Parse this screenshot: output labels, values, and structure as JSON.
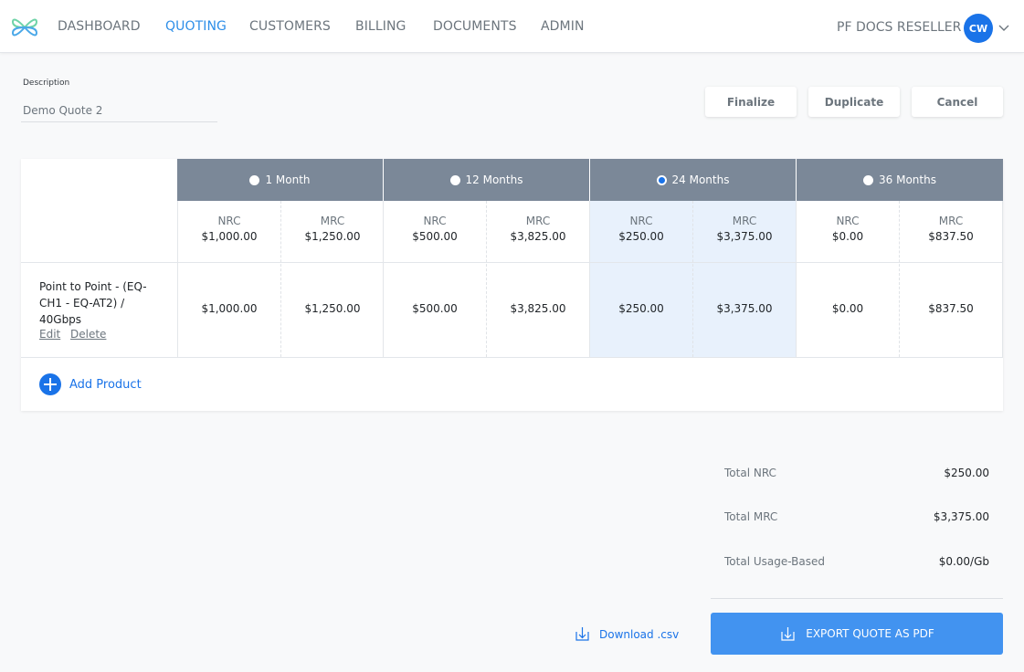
{
  "nav": {
    "items": [
      {
        "label": "DASHBOARD",
        "active": false
      },
      {
        "label": "QUOTING",
        "active": true
      },
      {
        "label": "CUSTOMERS",
        "active": false
      },
      {
        "label": "BILLING",
        "active": false
      },
      {
        "label": "DOCUMENTS",
        "active": false
      },
      {
        "label": "ADMIN",
        "active": false
      }
    ],
    "account_name": "PF DOCS RESELLER",
    "avatar_initials": "CW"
  },
  "description": {
    "label": "Description",
    "value": "Demo Quote 2"
  },
  "actions": {
    "finalize": "Finalize",
    "duplicate": "Duplicate",
    "cancel": "Cancel"
  },
  "terms": [
    {
      "label": "1 Month",
      "selected": false,
      "nrc_label": "NRC",
      "mrc_label": "MRC",
      "nrc_total": "$1,000.00",
      "mrc_total": "$1,250.00"
    },
    {
      "label": "12 Months",
      "selected": false,
      "nrc_label": "NRC",
      "mrc_label": "MRC",
      "nrc_total": "$500.00",
      "mrc_total": "$3,825.00"
    },
    {
      "label": "24 Months",
      "selected": true,
      "nrc_label": "NRC",
      "mrc_label": "MRC",
      "nrc_total": "$250.00",
      "mrc_total": "$3,375.00"
    },
    {
      "label": "36 Months",
      "selected": false,
      "nrc_label": "NRC",
      "mrc_label": "MRC",
      "nrc_total": "$0.00",
      "mrc_total": "$837.50"
    }
  ],
  "products": [
    {
      "name": "Point to Point - (EQ-CH1 - EQ-AT2) / 40Gbps",
      "edit_label": "Edit",
      "delete_label": "Delete",
      "prices": [
        "$1,000.00",
        "$1,250.00",
        "$500.00",
        "$3,825.00",
        "$250.00",
        "$3,375.00",
        "$0.00",
        "$837.50"
      ]
    }
  ],
  "add_product_label": "Add Product",
  "totals": {
    "nrc_label": "Total NRC",
    "nrc_value": "$250.00",
    "mrc_label": "Total MRC",
    "mrc_value": "$3,375.00",
    "usage_label": "Total Usage-Based",
    "usage_value": "$0.00/Gb"
  },
  "download_label": "Download .csv",
  "export_label": "EXPORT QUOTE AS PDF",
  "colors": {
    "accent": "#1a73e8",
    "term_header": "#7b8898",
    "selected_column": "#e8f1fc",
    "export_button": "#4293f0"
  }
}
